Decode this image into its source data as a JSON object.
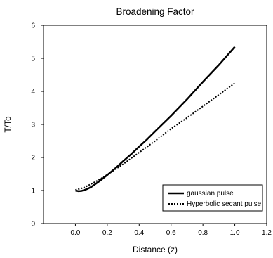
{
  "chart_data": {
    "type": "line",
    "title": "Broadening Factor",
    "xlabel": "Distance (z)",
    "ylabel": "T/To",
    "xlim": [
      -0.2,
      1.2
    ],
    "ylim": [
      0,
      6
    ],
    "xticks": [
      0.0,
      0.2,
      0.4,
      0.6,
      0.8,
      1.0,
      1.2
    ],
    "xtick_labels": [
      "0.0",
      "0.2",
      "0.4",
      "0.6",
      "0.8",
      "1.0",
      "1.2"
    ],
    "yticks": [
      0,
      1,
      2,
      3,
      4,
      5,
      6
    ],
    "ytick_labels": [
      "0",
      "1",
      "2",
      "3",
      "4",
      "5",
      "6"
    ],
    "grid": false,
    "legend_position": "bottom-right",
    "series": [
      {
        "name": "gaussian pulse",
        "style": "solid",
        "color": "#000000",
        "x": [
          0.0,
          0.02,
          0.04,
          0.06,
          0.08,
          0.1,
          0.15,
          0.2,
          0.25,
          0.3,
          0.35,
          0.4,
          0.45,
          0.5,
          0.6,
          0.7,
          0.8,
          0.9,
          1.0
        ],
        "y": [
          1.0,
          0.98,
          0.99,
          1.02,
          1.06,
          1.11,
          1.28,
          1.47,
          1.67,
          1.89,
          2.1,
          2.33,
          2.55,
          2.79,
          3.26,
          3.76,
          4.29,
          4.8,
          5.35
        ]
      },
      {
        "name": "Hyperbolic secant pulse",
        "style": "dotted",
        "color": "#000000",
        "x": [
          0.0,
          0.05,
          0.1,
          0.15,
          0.2,
          0.3,
          0.4,
          0.5,
          0.6,
          0.7,
          0.8,
          0.9,
          1.0
        ],
        "y": [
          1.02,
          1.08,
          1.2,
          1.33,
          1.48,
          1.8,
          2.15,
          2.5,
          2.87,
          3.2,
          3.55,
          3.9,
          4.25
        ]
      }
    ]
  }
}
